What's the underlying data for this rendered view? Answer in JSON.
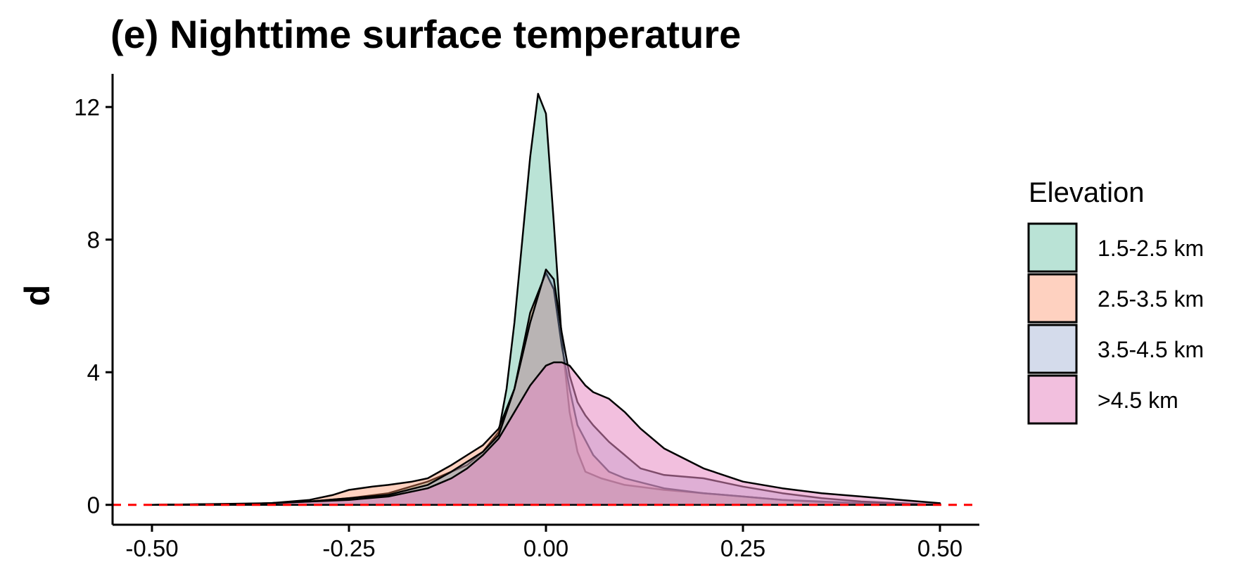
{
  "chart_data": {
    "type": "area",
    "subtype": "density",
    "title": "(e) Nighttime surface temperature",
    "xlabel": "",
    "ylabel": "d",
    "xlim": [
      -0.55,
      0.55
    ],
    "ylim": [
      -0.6,
      13.0
    ],
    "xticks": [
      -0.5,
      -0.25,
      0.0,
      0.25,
      0.5
    ],
    "xtick_labels": [
      "-0.50",
      "-0.25",
      "0.00",
      "0.25",
      "0.50"
    ],
    "yticks": [
      0,
      4,
      8,
      12
    ],
    "ytick_labels": [
      "0",
      "4",
      "8",
      "12"
    ],
    "reference_line": {
      "y": 0,
      "style": "dashed",
      "color": "#ff0000"
    },
    "legend": {
      "title": "Elevation",
      "position": "right"
    },
    "series": [
      {
        "name": "1.5-2.5 km",
        "color": "#66c2a5",
        "opacity": 0.45,
        "x": [
          -0.5,
          -0.4,
          -0.35,
          -0.3,
          -0.25,
          -0.2,
          -0.15,
          -0.1,
          -0.08,
          -0.06,
          -0.05,
          -0.04,
          -0.03,
          -0.02,
          -0.01,
          0.0,
          0.01,
          0.02,
          0.03,
          0.04,
          0.05,
          0.07,
          0.1,
          0.15,
          0.2,
          0.25,
          0.3,
          0.35,
          0.4,
          0.45,
          0.5
        ],
        "y": [
          0,
          0.02,
          0.05,
          0.1,
          0.2,
          0.35,
          0.7,
          1.2,
          1.6,
          2.2,
          3.5,
          5.5,
          8.0,
          10.5,
          12.4,
          11.8,
          8.5,
          5.0,
          2.8,
          1.6,
          1.0,
          0.8,
          0.6,
          0.45,
          0.35,
          0.25,
          0.15,
          0.08,
          0.05,
          0.02,
          0
        ]
      },
      {
        "name": "2.5-3.5 km",
        "color": "#fc8d62",
        "opacity": 0.4,
        "x": [
          -0.5,
          -0.4,
          -0.35,
          -0.3,
          -0.27,
          -0.25,
          -0.22,
          -0.2,
          -0.17,
          -0.15,
          -0.12,
          -0.1,
          -0.08,
          -0.06,
          -0.04,
          -0.02,
          0.0,
          0.01,
          0.02,
          0.03,
          0.04,
          0.06,
          0.08,
          0.1,
          0.15,
          0.2,
          0.25,
          0.3,
          0.35,
          0.4,
          0.45,
          0.5
        ],
        "y": [
          0,
          0.03,
          0.05,
          0.15,
          0.3,
          0.45,
          0.55,
          0.6,
          0.7,
          0.8,
          1.2,
          1.5,
          1.8,
          2.3,
          3.5,
          5.8,
          7.0,
          6.5,
          4.8,
          3.5,
          2.4,
          1.5,
          1.0,
          0.8,
          0.5,
          0.35,
          0.25,
          0.15,
          0.1,
          0.05,
          0.02,
          0
        ]
      },
      {
        "name": "3.5-4.5 km",
        "color": "#8da0cb",
        "opacity": 0.38,
        "x": [
          -0.5,
          -0.4,
          -0.35,
          -0.3,
          -0.25,
          -0.2,
          -0.15,
          -0.12,
          -0.1,
          -0.08,
          -0.06,
          -0.04,
          -0.02,
          0.0,
          0.01,
          0.02,
          0.03,
          0.04,
          0.05,
          0.06,
          0.08,
          0.1,
          0.12,
          0.15,
          0.2,
          0.25,
          0.3,
          0.35,
          0.4,
          0.45,
          0.5
        ],
        "y": [
          0,
          0.02,
          0.05,
          0.1,
          0.2,
          0.3,
          0.6,
          1.0,
          1.3,
          1.6,
          2.1,
          3.5,
          5.5,
          7.1,
          6.8,
          5.2,
          3.9,
          3.1,
          2.7,
          2.4,
          1.9,
          1.5,
          1.1,
          0.9,
          0.8,
          0.55,
          0.35,
          0.2,
          0.1,
          0.05,
          0
        ]
      },
      {
        "name": ">4.5 km",
        "color": "#e78ac3",
        "opacity": 0.55,
        "x": [
          -0.5,
          -0.4,
          -0.35,
          -0.3,
          -0.25,
          -0.2,
          -0.15,
          -0.12,
          -0.1,
          -0.08,
          -0.06,
          -0.04,
          -0.02,
          0.0,
          0.01,
          0.02,
          0.03,
          0.04,
          0.05,
          0.06,
          0.08,
          0.1,
          0.12,
          0.15,
          0.2,
          0.25,
          0.3,
          0.35,
          0.4,
          0.45,
          0.5
        ],
        "y": [
          0,
          0.02,
          0.05,
          0.1,
          0.15,
          0.25,
          0.5,
          0.8,
          1.1,
          1.5,
          2.0,
          2.8,
          3.6,
          4.2,
          4.3,
          4.3,
          4.2,
          3.9,
          3.6,
          3.4,
          3.2,
          2.8,
          2.3,
          1.7,
          1.1,
          0.7,
          0.5,
          0.35,
          0.25,
          0.15,
          0.05
        ]
      }
    ]
  }
}
